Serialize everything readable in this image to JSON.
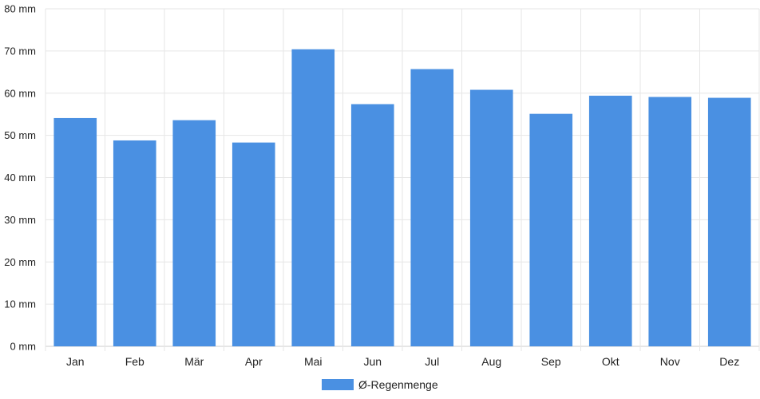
{
  "chart_data": {
    "type": "bar",
    "categories": [
      "Jan",
      "Feb",
      "Mär",
      "Apr",
      "Mai",
      "Jun",
      "Jul",
      "Aug",
      "Sep",
      "Okt",
      "Nov",
      "Dez"
    ],
    "series": [
      {
        "name": "Ø-Regenmenge",
        "values": [
          54.1,
          48.8,
          53.6,
          48.3,
          70.4,
          57.4,
          65.7,
          60.8,
          55.1,
          59.4,
          59.1,
          58.9
        ],
        "color": "#4a90e2"
      }
    ],
    "y_ticks": [
      "0 mm",
      "10 mm",
      "20 mm",
      "30 mm",
      "40 mm",
      "50 mm",
      "60 mm",
      "70 mm",
      "80 mm"
    ],
    "ylim": [
      0,
      80
    ],
    "grid": true,
    "legend_position": "bottom"
  }
}
